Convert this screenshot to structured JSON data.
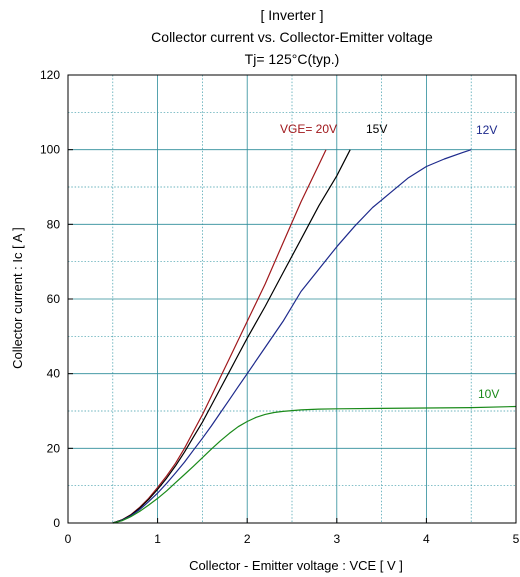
{
  "chart_data": {
    "type": "line",
    "title_lines": [
      "[ Inverter ]",
      "Collector current  vs.  Collector-Emitter voltage",
      "Tj= 125°C(typ.)"
    ],
    "xlabel": "Collector - Emitter voltage  :  VCE  [ V ]",
    "ylabel": "Collector current  :  Ic  [ A ]",
    "xlim": [
      0,
      5
    ],
    "ylim": [
      0,
      120
    ],
    "xticks": [
      "0",
      "1",
      "2",
      "3",
      "4",
      "5"
    ],
    "yticks": [
      "0",
      "20",
      "40",
      "60",
      "80",
      "100",
      "120"
    ],
    "grid": true,
    "series": [
      {
        "name": "VGE= 20V",
        "color": "#a0181c",
        "x": [
          0.5,
          0.6,
          0.7,
          0.8,
          0.9,
          1.0,
          1.1,
          1.2,
          1.3,
          1.4,
          1.5,
          1.6,
          1.7,
          1.8,
          1.9,
          2.0,
          2.2,
          2.4,
          2.6,
          2.8,
          2.88
        ],
        "y": [
          0,
          0.8,
          2.2,
          4.2,
          6.6,
          9.5,
          12.6,
          16,
          20,
          24.5,
          29,
          34,
          39,
          44,
          49,
          54,
          64,
          75,
          86,
          96,
          100
        ]
      },
      {
        "name": "15V",
        "color": "#000000",
        "x": [
          0.5,
          0.6,
          0.7,
          0.8,
          0.9,
          1.0,
          1.1,
          1.2,
          1.3,
          1.4,
          1.5,
          1.6,
          1.7,
          1.8,
          1.9,
          2.0,
          2.2,
          2.4,
          2.6,
          2.8,
          3.0,
          3.15
        ],
        "y": [
          0,
          0.8,
          2.1,
          4.0,
          6.3,
          9.0,
          12,
          15.3,
          19,
          23,
          27,
          31.5,
          36,
          40.5,
          45,
          49.5,
          58,
          67,
          76,
          85,
          93,
          100
        ]
      },
      {
        "name": "12V",
        "color": "#1e2a8c",
        "x": [
          0.5,
          0.6,
          0.7,
          0.8,
          0.9,
          1.0,
          1.1,
          1.2,
          1.3,
          1.4,
          1.5,
          1.6,
          1.7,
          1.8,
          1.9,
          2.0,
          2.2,
          2.4,
          2.6,
          2.8,
          3.0,
          3.2,
          3.4,
          3.6,
          3.8,
          4.0,
          4.2,
          4.4,
          4.5
        ],
        "y": [
          0,
          0.7,
          1.9,
          3.6,
          5.7,
          8.0,
          10.6,
          13.4,
          16.3,
          19.5,
          22.7,
          26,
          29.5,
          33,
          36.5,
          40,
          47,
          54,
          62,
          68,
          74,
          79.5,
          84.5,
          88.5,
          92.5,
          95.5,
          97.5,
          99.2,
          100
        ]
      },
      {
        "name": "10V",
        "color": "#1a8a1a",
        "x": [
          0.5,
          0.6,
          0.7,
          0.8,
          0.9,
          1.0,
          1.1,
          1.2,
          1.3,
          1.4,
          1.5,
          1.6,
          1.7,
          1.8,
          1.9,
          2.0,
          2.1,
          2.2,
          2.3,
          2.4,
          2.5,
          2.6,
          2.8,
          3.0,
          3.5,
          4.0,
          4.5,
          5.0
        ],
        "y": [
          0,
          0.6,
          1.7,
          3.1,
          4.8,
          6.6,
          8.6,
          10.8,
          13,
          15.2,
          17.5,
          19.8,
          22,
          24,
          25.8,
          27.2,
          28.3,
          29.1,
          29.6,
          29.9,
          30.1,
          30.3,
          30.5,
          30.6,
          30.7,
          30.8,
          30.9,
          31.2
        ]
      }
    ]
  }
}
